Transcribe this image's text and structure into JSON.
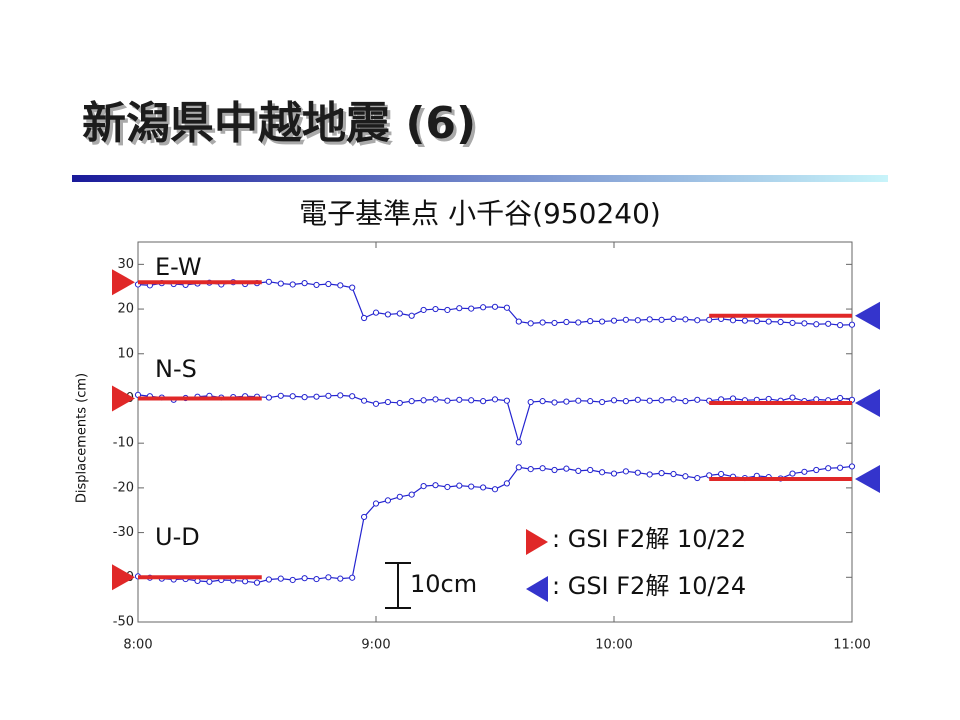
{
  "chart_data": {
    "type": "line",
    "slide_title": "新潟県中越地震 (6)",
    "title": "電子基準点 小千谷(950240)",
    "ylabel": "Displacements (cm)",
    "scale_label": "10cm",
    "x": [
      8,
      8.05,
      8.1,
      8.15,
      8.2,
      8.25,
      8.3,
      8.35,
      8.4,
      8.45,
      8.5,
      8.55,
      8.6,
      8.65,
      8.7,
      8.75,
      8.8,
      8.85,
      8.9,
      8.95,
      9,
      9.05,
      9.1,
      9.15,
      9.2,
      9.25,
      9.3,
      9.35,
      9.4,
      9.45,
      9.5,
      9.55,
      9.6,
      9.65,
      9.7,
      9.75,
      9.8,
      9.85,
      9.9,
      9.95,
      10,
      10.05,
      10.1,
      10.15,
      10.2,
      10.25,
      10.3,
      10.35,
      10.4,
      10.45,
      10.5,
      10.55,
      10.6,
      10.65,
      10.7,
      10.75,
      10.8,
      10.85,
      10.9,
      10.95,
      11
    ],
    "series": [
      {
        "name": "E-W",
        "color": "#2424d0",
        "values": [
          25.5,
          25.3,
          25.8,
          25.6,
          25.4,
          25.7,
          25.9,
          25.5,
          26.0,
          25.6,
          25.8,
          26.1,
          25.7,
          25.5,
          25.8,
          25.4,
          25.6,
          25.3,
          24.8,
          18.0,
          19.2,
          18.8,
          19.0,
          18.5,
          19.8,
          20.0,
          19.8,
          20.2,
          20.1,
          20.4,
          20.5,
          20.3,
          17.2,
          16.8,
          17.0,
          16.9,
          17.1,
          17.0,
          17.3,
          17.2,
          17.4,
          17.6,
          17.5,
          17.7,
          17.6,
          17.8,
          17.7,
          17.5,
          17.6,
          17.8,
          17.5,
          17.4,
          17.3,
          17.2,
          17.1,
          16.9,
          16.8,
          16.6,
          16.7,
          16.4,
          16.5
        ]
      },
      {
        "name": "N-S",
        "color": "#2424d0",
        "values": [
          0.8,
          0.5,
          0.2,
          -0.3,
          0.1,
          0.4,
          0.6,
          0.2,
          0.3,
          0.5,
          0.4,
          0.2,
          0.6,
          0.5,
          0.3,
          0.4,
          0.6,
          0.7,
          0.5,
          -0.5,
          -1.2,
          -0.8,
          -1.0,
          -0.6,
          -0.4,
          -0.2,
          -0.5,
          -0.3,
          -0.4,
          -0.6,
          -0.2,
          -0.5,
          -9.8,
          -0.8,
          -0.6,
          -0.9,
          -0.7,
          -0.5,
          -0.6,
          -0.8,
          -0.4,
          -0.6,
          -0.3,
          -0.5,
          -0.4,
          -0.2,
          -0.6,
          -0.3,
          -0.5,
          -0.2,
          0.0,
          -0.4,
          -0.3,
          -0.1,
          -0.5,
          0.2,
          -0.6,
          -0.2,
          -0.4,
          0.1,
          -0.3
        ]
      },
      {
        "name": "U-D",
        "color": "#2424d0",
        "values": [
          -39.8,
          -40.1,
          -40.3,
          -40.5,
          -40.4,
          -40.8,
          -41.0,
          -40.6,
          -40.7,
          -40.9,
          -41.2,
          -40.5,
          -40.3,
          -40.6,
          -40.2,
          -40.4,
          -40.0,
          -40.3,
          -40.1,
          -26.5,
          -23.5,
          -22.8,
          -22.0,
          -21.5,
          -19.6,
          -19.4,
          -19.8,
          -19.5,
          -19.7,
          -19.9,
          -20.3,
          -19.0,
          -15.4,
          -15.8,
          -15.6,
          -16.0,
          -15.7,
          -16.2,
          -16.0,
          -16.5,
          -16.8,
          -16.3,
          -16.6,
          -17.0,
          -16.7,
          -16.9,
          -17.4,
          -17.8,
          -17.2,
          -16.9,
          -17.5,
          -17.8,
          -17.3,
          -17.6,
          -17.9,
          -16.8,
          -16.4,
          -16.0,
          -15.6,
          -15.5,
          -15.2
        ]
      }
    ],
    "references": [
      {
        "name": ": GSI F2解 10/22",
        "color": "#e02828",
        "marker_color": "#e02828",
        "start": 8,
        "end": 8.52,
        "values": [
          26,
          0,
          -40
        ]
      },
      {
        "name": ": GSI F2解 10/24",
        "color": "#e02828",
        "marker_color": "#3434cc",
        "start": 10.4,
        "end": 11,
        "values": [
          18.5,
          -1,
          -18
        ]
      }
    ],
    "xlim": [
      8,
      11
    ],
    "xticks": [
      {
        "value": 8,
        "label": "8:00"
      },
      {
        "value": 9,
        "label": "9:00"
      },
      {
        "value": 10,
        "label": "10:00"
      },
      {
        "value": 11,
        "label": "11:00"
      }
    ],
    "ylim": [
      -50,
      35
    ],
    "yticks": [
      -50,
      -40,
      -30,
      -20,
      -10,
      0,
      10,
      20,
      30
    ]
  }
}
